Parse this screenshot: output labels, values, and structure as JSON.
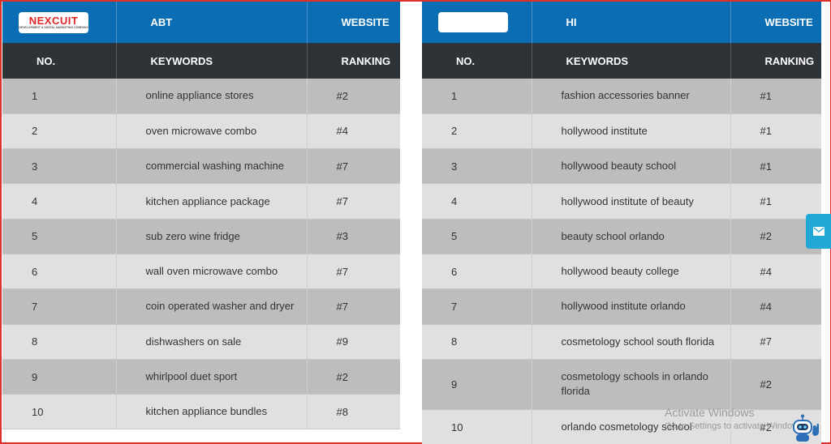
{
  "left": {
    "logo_text": "NEXCUIT",
    "logo_tagline": "DEVELOPMENT & DIGITAL MARKETING COMPANY",
    "site_name": "ABT",
    "website_label": "WEBSITE",
    "headers": {
      "no": "NO.",
      "keywords": "KEYWORDS",
      "ranking": "RANKING"
    },
    "rows": [
      {
        "no": "1",
        "keyword": "online appliance stores",
        "ranking": "#2"
      },
      {
        "no": "2",
        "keyword": "oven microwave combo",
        "ranking": "#4"
      },
      {
        "no": "3",
        "keyword": "commercial washing machine",
        "ranking": "#7"
      },
      {
        "no": "4",
        "keyword": "kitchen appliance package",
        "ranking": "#7"
      },
      {
        "no": "5",
        "keyword": "sub zero wine fridge",
        "ranking": "#3"
      },
      {
        "no": "6",
        "keyword": "wall oven microwave combo",
        "ranking": "#7"
      },
      {
        "no": "7",
        "keyword": "coin operated washer and dryer",
        "ranking": "#7"
      },
      {
        "no": "8",
        "keyword": "dishwashers on sale",
        "ranking": "#9"
      },
      {
        "no": "9",
        "keyword": "whirlpool duet sport",
        "ranking": "#2"
      },
      {
        "no": "10",
        "keyword": "kitchen appliance bundles",
        "ranking": "#8"
      }
    ]
  },
  "right": {
    "site_name": "HI",
    "website_label": "WEBSITE",
    "headers": {
      "no": "NO.",
      "keywords": "KEYWORDS",
      "ranking": "RANKING"
    },
    "rows": [
      {
        "no": "1",
        "keyword": "fashion accessories banner",
        "ranking": "#1"
      },
      {
        "no": "2",
        "keyword": "hollywood institute",
        "ranking": "#1"
      },
      {
        "no": "3",
        "keyword": "hollywood beauty school",
        "ranking": "#1"
      },
      {
        "no": "4",
        "keyword": "hollywood institute of beauty",
        "ranking": "#1"
      },
      {
        "no": "5",
        "keyword": "beauty school orlando",
        "ranking": "#2"
      },
      {
        "no": "6",
        "keyword": "hollywood beauty college",
        "ranking": "#4"
      },
      {
        "no": "7",
        "keyword": "hollywood institute orlando",
        "ranking": "#4"
      },
      {
        "no": "8",
        "keyword": "cosmetology school south florida",
        "ranking": "#7"
      },
      {
        "no": "9",
        "keyword": "cosmetology schools in orlando florida",
        "ranking": "#2"
      },
      {
        "no": "10",
        "keyword": "orlando cosmetology school",
        "ranking": "#2"
      }
    ]
  },
  "watermark": {
    "title": "Activate Windows",
    "subtitle": "Go to Settings to activate Windows."
  },
  "floating_button_icon": "email-icon",
  "colors": {
    "header_blue": "#0b6db3",
    "header_dark": "#2e3338",
    "row_dark": "#bdbdbd",
    "row_light": "#e0e0e0",
    "logo_red": "#e02626",
    "float_button": "#22a8d6",
    "frame_border": "#e0302a"
  }
}
